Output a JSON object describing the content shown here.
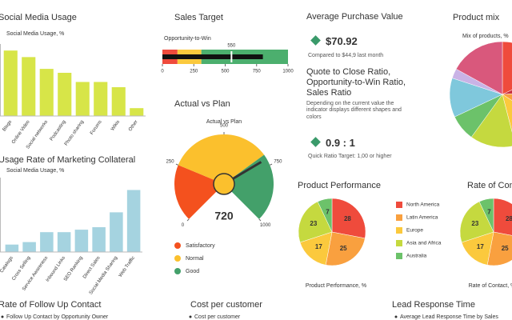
{
  "chart_data": [
    {
      "type": "bar",
      "title": "Social Media Usage",
      "subtitle": "Social Media Usage, %",
      "categories": [
        "Blogs",
        "Online Video",
        "Social networks",
        "Podcasting",
        "Photo sharing",
        "Forums",
        "Wikis",
        "Other"
      ],
      "values": [
        50,
        45,
        36,
        33,
        26,
        26,
        22,
        6
      ],
      "color": "#d7e548",
      "ylim": [
        0,
        55
      ]
    },
    {
      "type": "bar",
      "title": "Usage Rate of Marketing Collateral",
      "subtitle": "Social Media Usage, %",
      "categories": [
        "Catalogs",
        "Cross Selling",
        "Service Awareness",
        "Inbound Links",
        "SEO Ranking",
        "Direct Sales",
        "Social Media Sharing",
        "Web Traffic"
      ],
      "values": [
        3,
        4,
        8,
        8,
        9,
        10,
        16,
        25
      ],
      "color": "#a5d3e0",
      "ylim": [
        0,
        30
      ]
    },
    {
      "type": "bullet",
      "title": "Sales Target",
      "subtitle": "Opportunity-to-Win",
      "value": 800,
      "target": 550,
      "color": "#111111",
      "xlim": [
        0,
        1000
      ],
      "xticks": [
        0,
        250,
        500,
        750,
        1000
      ],
      "bands": [
        {
          "color": "#ef4b3c",
          "to": 120
        },
        {
          "color": "#fbc93d",
          "to": 310
        },
        {
          "color": "#4caf6e",
          "to": 1000
        }
      ]
    },
    {
      "type": "gauge",
      "title": "Actual vs Plan",
      "subtitle": "Actual vs Plan",
      "value": 720,
      "ylim": [
        0,
        1000
      ],
      "yticks": [
        0,
        250,
        500,
        750,
        1000
      ],
      "series": [
        {
          "name": "Satisfactory",
          "color": "#f4511e",
          "to": 250
        },
        {
          "name": "Normal",
          "color": "#fbc02d",
          "to": 700
        },
        {
          "name": "Good",
          "color": "#43a06a",
          "to": 1000
        }
      ]
    },
    {
      "type": "pie",
      "title": "Product mix",
      "subtitle": "Mix of products, %",
      "values": [
        18,
        6,
        10,
        12,
        14,
        8,
        12,
        3,
        17
      ],
      "colors": [
        "#ef4b3c",
        "#c9303f",
        "#f9a03f",
        "#fbc93d",
        "#c5d93f",
        "#6cc26a",
        "#7fc8dc",
        "#c9b3e6",
        "#d9587c"
      ]
    },
    {
      "type": "pie",
      "title": "Product Performance",
      "subtitle": "Product Performance, %",
      "categories": [
        "North America",
        "Latin America",
        "Europe",
        "Asia and Africa",
        "Australia"
      ],
      "values": [
        28,
        25,
        17,
        23,
        7
      ],
      "colors": [
        "#ef4b3c",
        "#f9a03f",
        "#fbc93d",
        "#c5d93f",
        "#6cc26a"
      ],
      "legend": "right"
    },
    {
      "type": "pie",
      "title": "Rate of Contact",
      "subtitle": "Rate of Contact, %",
      "values": [
        28,
        25,
        17,
        23,
        7
      ],
      "colors": [
        "#ef4b3c",
        "#f9a03f",
        "#fbc93d",
        "#c5d93f",
        "#6cc26a"
      ]
    }
  ],
  "kpis": [
    {
      "title": "Average Purchase Value",
      "value": "$70.92",
      "note": "Compared to $44,9 last month",
      "color": "#3a9a6a"
    },
    {
      "title": "Quote to Close Ratio, Opportunity-to-Win Ratio, Sales Ratio",
      "description": "Depending on the current value the indicator displays different shapes and colors",
      "value": "0.9 : 1",
      "note": "Quick Ratio Target: 1,00 or higher",
      "color": "#3a9a6a"
    }
  ],
  "panels": [
    {
      "title": "Rate of Follow Up Contact",
      "subtitle": "Follow Up Contact by Opportunity Owner"
    },
    {
      "title": "Cost per customer",
      "subtitle": "Cost per customer"
    },
    {
      "title": "Lead Response Time",
      "subtitle": "Average Lead Response Time by Sales"
    }
  ]
}
